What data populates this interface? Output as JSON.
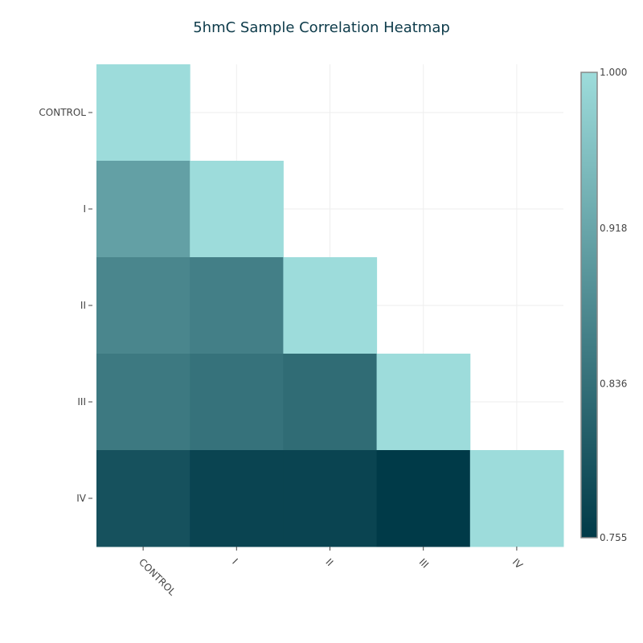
{
  "chart_data": {
    "type": "heatmap",
    "title": "5hmC Sample Correlation Heatmap",
    "x_categories": [
      "CONTROL",
      "I",
      "II",
      "III",
      "IV"
    ],
    "y_categories": [
      "CONTROL",
      "I",
      "II",
      "III",
      "IV"
    ],
    "z": [
      [
        1.0,
        null,
        null,
        null,
        null
      ],
      [
        0.91,
        1.0,
        null,
        null,
        null
      ],
      [
        0.87,
        0.86,
        1.0,
        null,
        null
      ],
      [
        0.85,
        0.84,
        0.83,
        1.0,
        null
      ],
      [
        0.79,
        0.77,
        0.77,
        0.755,
        1.0
      ]
    ],
    "zmin": 0.755,
    "zmax": 1.0,
    "colorscale": [
      "#003a48",
      "#9ddcdb"
    ],
    "colorbar_ticks": [
      "1.000",
      "0.918",
      "0.836",
      "0.755"
    ],
    "colorbar_tick_values": [
      1.0,
      0.918,
      0.836,
      0.755
    ],
    "xlabel": "",
    "ylabel": "",
    "grid": true
  }
}
